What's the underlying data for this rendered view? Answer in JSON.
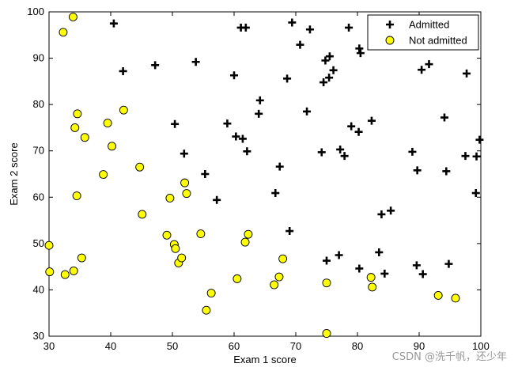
{
  "chart_data": {
    "type": "scatter",
    "xlabel": "Exam 1 score",
    "ylabel": "Exam 2 score",
    "xlim": [
      30,
      100
    ],
    "ylim": [
      30,
      100
    ],
    "xticks": [
      30,
      40,
      50,
      60,
      70,
      80,
      90,
      100
    ],
    "yticks": [
      30,
      40,
      50,
      60,
      70,
      80,
      90,
      100
    ],
    "grid": false,
    "legend_position": "top-right",
    "series": [
      {
        "name": "Admitted",
        "marker": "plus",
        "color": "#000000",
        "points": [
          [
            40.5,
            97.5
          ],
          [
            42.0,
            87.2
          ],
          [
            47.2,
            88.5
          ],
          [
            50.4,
            75.8
          ],
          [
            51.9,
            69.4
          ],
          [
            53.8,
            89.2
          ],
          [
            55.3,
            65.0
          ],
          [
            57.2,
            59.4
          ],
          [
            58.9,
            75.9
          ],
          [
            60.0,
            86.3
          ],
          [
            60.3,
            73.1
          ],
          [
            61.1,
            96.6
          ],
          [
            61.4,
            72.6
          ],
          [
            61.9,
            96.6
          ],
          [
            62.1,
            69.9
          ],
          [
            64.0,
            78.0
          ],
          [
            64.2,
            80.9
          ],
          [
            66.7,
            60.9
          ],
          [
            67.4,
            66.6
          ],
          [
            68.6,
            85.6
          ],
          [
            69.0,
            52.7
          ],
          [
            69.4,
            97.7
          ],
          [
            70.7,
            92.9
          ],
          [
            71.8,
            78.5
          ],
          [
            72.3,
            96.2
          ],
          [
            74.2,
            69.7
          ],
          [
            74.5,
            84.8
          ],
          [
            74.8,
            89.5
          ],
          [
            75.0,
            46.3
          ],
          [
            75.4,
            85.8
          ],
          [
            75.5,
            90.4
          ],
          [
            76.1,
            87.4
          ],
          [
            77.0,
            47.5
          ],
          [
            77.2,
            70.3
          ],
          [
            77.9,
            68.9
          ],
          [
            78.6,
            96.6
          ],
          [
            79.0,
            75.3
          ],
          [
            80.2,
            74.1
          ],
          [
            80.3,
            44.6
          ],
          [
            80.3,
            92.1
          ],
          [
            80.5,
            91.1
          ],
          [
            82.3,
            76.5
          ],
          [
            83.5,
            48.1
          ],
          [
            83.9,
            56.3
          ],
          [
            84.4,
            43.5
          ],
          [
            85.4,
            57.1
          ],
          [
            88.9,
            69.8
          ],
          [
            89.6,
            45.3
          ],
          [
            89.7,
            65.8
          ],
          [
            90.4,
            87.5
          ],
          [
            90.6,
            43.4
          ],
          [
            91.6,
            88.7
          ],
          [
            94.1,
            77.2
          ],
          [
            94.4,
            65.6
          ],
          [
            94.8,
            45.6
          ],
          [
            97.5,
            68.9
          ],
          [
            97.7,
            86.7
          ],
          [
            99.2,
            60.9
          ],
          [
            99.3,
            68.8
          ],
          [
            99.8,
            72.4
          ]
        ]
      },
      {
        "name": "Not admitted",
        "marker": "circle",
        "color": "#ffff00",
        "edge_color": "#000000",
        "points": [
          [
            30.1,
            43.9
          ],
          [
            32.3,
            95.6
          ],
          [
            30.0,
            49.6
          ],
          [
            32.6,
            43.3
          ],
          [
            33.9,
            98.9
          ],
          [
            34.0,
            44.1
          ],
          [
            34.2,
            75.0
          ],
          [
            34.5,
            60.3
          ],
          [
            34.6,
            78.0
          ],
          [
            35.3,
            46.9
          ],
          [
            35.8,
            72.9
          ],
          [
            38.8,
            64.9
          ],
          [
            39.5,
            76.0
          ],
          [
            40.2,
            71.0
          ],
          [
            42.1,
            78.8
          ],
          [
            44.7,
            66.5
          ],
          [
            45.1,
            56.3
          ],
          [
            49.1,
            51.8
          ],
          [
            49.6,
            59.8
          ],
          [
            50.3,
            49.8
          ],
          [
            50.5,
            48.9
          ],
          [
            51.0,
            45.8
          ],
          [
            51.5,
            46.9
          ],
          [
            52.0,
            63.1
          ],
          [
            52.3,
            60.8
          ],
          [
            54.6,
            52.1
          ],
          [
            55.5,
            35.6
          ],
          [
            56.3,
            39.3
          ],
          [
            60.5,
            42.4
          ],
          [
            61.8,
            50.3
          ],
          [
            62.3,
            52.0
          ],
          [
            66.5,
            41.1
          ],
          [
            67.3,
            42.8
          ],
          [
            67.9,
            46.7
          ],
          [
            75.0,
            41.5
          ],
          [
            75.0,
            30.6
          ],
          [
            82.2,
            42.7
          ],
          [
            82.4,
            40.6
          ],
          [
            93.1,
            38.8
          ],
          [
            95.9,
            38.2
          ]
        ]
      }
    ]
  },
  "watermark": "CSDN @洗千帆，还少年"
}
